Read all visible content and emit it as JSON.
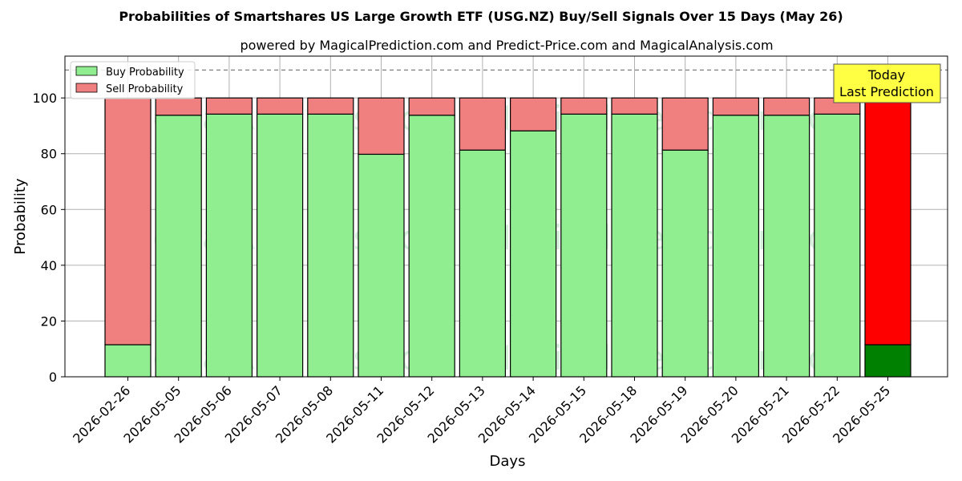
{
  "colors": {
    "buy": "#90ee90",
    "sell": "#f08080",
    "buy_highlight": "#008000",
    "sell_highlight": "#ff0000",
    "annotation_bg": "#ffff44",
    "grid": "#b0b0b0",
    "reference_line": "#808080"
  },
  "chart_data": {
    "type": "bar",
    "stacked": true,
    "title": "Probabilities of Smartshares US Large Growth ETF (USG.NZ) Buy/Sell Signals Over 15 Days (May 26)",
    "subtitle": "powered by MagicalPrediction.com and Predict-Price.com and MagicalAnalysis.com",
    "xlabel": "Days",
    "ylabel": "Probability",
    "ylim": [
      0,
      115
    ],
    "yticks": [
      0,
      20,
      40,
      60,
      80,
      100
    ],
    "reference_line": 110,
    "grid": true,
    "legend_position": "top-left",
    "categories": [
      "2026-02-26",
      "2026-05-05",
      "2026-05-06",
      "2026-05-07",
      "2026-05-08",
      "2026-05-11",
      "2026-05-12",
      "2026-05-13",
      "2026-05-14",
      "2026-05-15",
      "2026-05-18",
      "2026-05-19",
      "2026-05-20",
      "2026-05-21",
      "2026-05-22",
      "2026-05-25"
    ],
    "series": [
      {
        "name": "Buy Probability",
        "values": [
          11.5,
          93.8,
          94.2,
          94.2,
          94.2,
          79.8,
          93.8,
          81.3,
          88.2,
          94.2,
          94.2,
          81.3,
          93.8,
          93.8,
          94.2,
          11.5
        ]
      },
      {
        "name": "Sell Probability",
        "values": [
          88.5,
          6.2,
          5.8,
          5.8,
          5.8,
          20.2,
          6.2,
          18.7,
          11.8,
          5.8,
          5.8,
          18.7,
          6.2,
          6.2,
          5.8,
          88.5
        ]
      }
    ],
    "highlight_index": 15,
    "annotation": {
      "line1": "Today",
      "line2": "Last Prediction"
    },
    "watermarks": [
      "MagicalAnalysis.com",
      "MagicalPrediction.com"
    ]
  }
}
